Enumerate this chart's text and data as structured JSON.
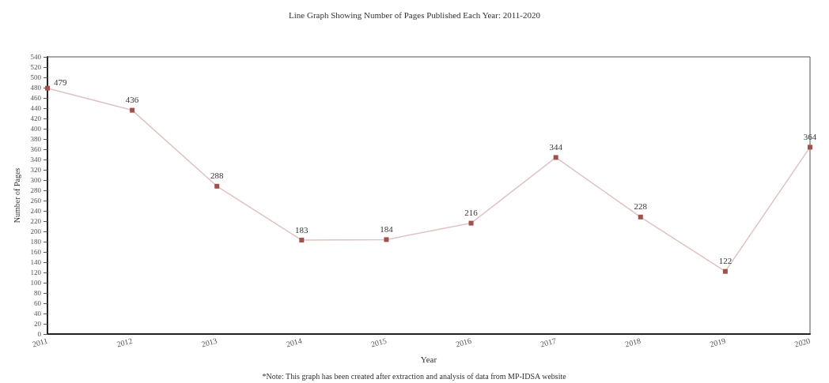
{
  "chart_data": {
    "type": "line",
    "title": "Line Graph Showing Number of Pages Published Each Year: 2011-2020",
    "xlabel": "Year",
    "ylabel": "Number of Pages",
    "categories": [
      "2011",
      "2012",
      "2013",
      "2014",
      "2015",
      "2016",
      "2017",
      "2018",
      "2019",
      "2020"
    ],
    "series": [
      {
        "color": "#a0524a",
        "values": [
          479,
          436,
          288,
          183,
          184,
          216,
          344,
          228,
          122,
          364
        ]
      }
    ],
    "ylim": [
      0,
      540
    ],
    "yticks": [
      0,
      20,
      40,
      60,
      80,
      100,
      120,
      140,
      160,
      180,
      200,
      220,
      240,
      260,
      280,
      300,
      320,
      340,
      360,
      380,
      400,
      420,
      440,
      460,
      480,
      500,
      520,
      540
    ],
    "data_labels": true,
    "marker": "square",
    "line_style": "solid",
    "grid": false,
    "annotations": [
      "*Note: This graph has been created after extraction and analysis of data from MP-IDSA website"
    ]
  }
}
